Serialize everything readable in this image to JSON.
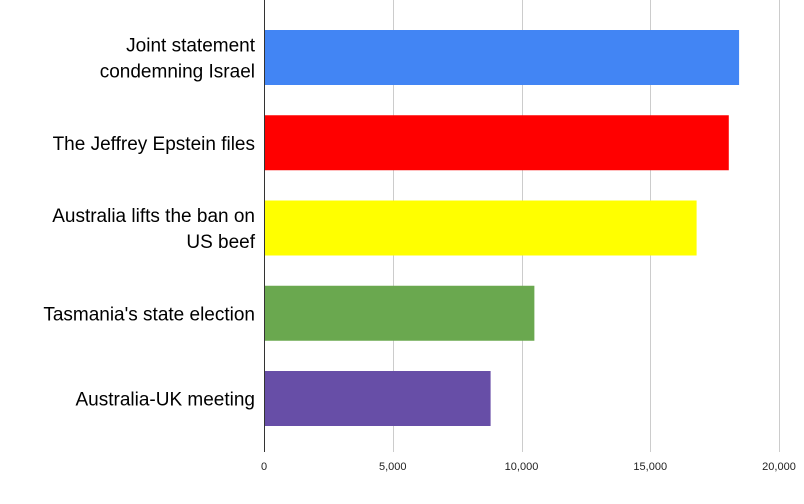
{
  "chart_data": {
    "type": "bar",
    "orientation": "horizontal",
    "categories": [
      [
        "Joint statement",
        "condemning Israel"
      ],
      [
        "The Jeffrey Epstein files"
      ],
      [
        "Australia lifts the ban on",
        "US beef"
      ],
      [
        "Tasmania's state election"
      ],
      [
        "Australia-UK meeting"
      ]
    ],
    "values": [
      18450,
      18050,
      16800,
      10500,
      8800
    ],
    "colors": [
      "#4285f4",
      "#ff0000",
      "#ffff00",
      "#6aa84f",
      "#674ea7"
    ],
    "xlim": [
      0,
      20000
    ],
    "xticks": [
      0,
      5000,
      10000,
      15000,
      20000
    ],
    "xtick_labels": [
      "0",
      "5,000",
      "10,000",
      "15,000",
      "20,000"
    ],
    "grid": true,
    "title": "",
    "xlabel": "",
    "ylabel": ""
  }
}
